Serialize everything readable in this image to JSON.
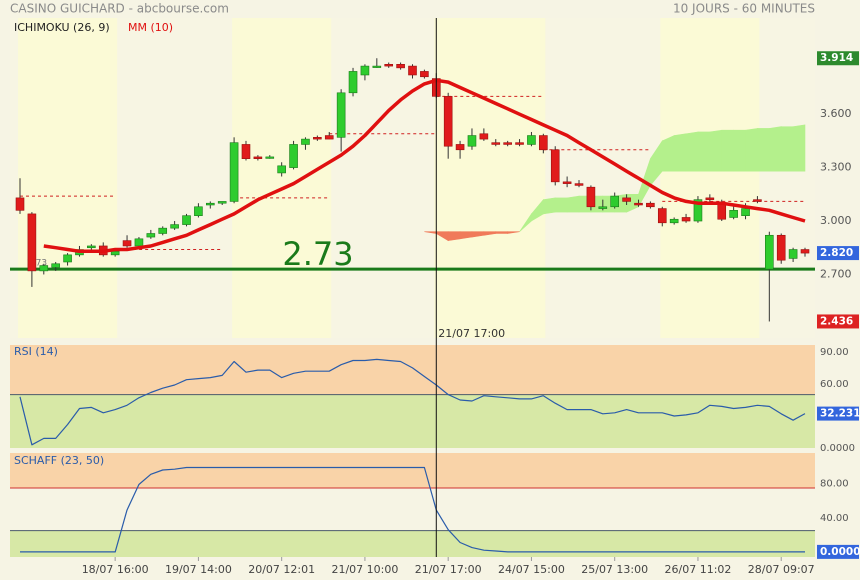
{
  "chart_data": [
    {
      "type": "candlestick",
      "title": "CASINO GUICHARD - abcbourse.com",
      "subtitle": "10 JOURS - 60 MINUTES",
      "open": [
        3.13,
        3.04,
        2.72,
        2.74,
        2.77,
        2.81,
        2.85,
        2.86,
        2.81,
        2.89,
        2.86,
        2.91,
        2.93,
        2.96,
        2.98,
        3.03,
        3.09,
        3.1,
        3.11,
        3.43,
        3.36,
        3.36,
        3.27,
        3.3,
        3.43,
        3.47,
        3.48,
        3.47,
        3.72,
        3.82,
        3.87,
        3.88,
        3.88,
        3.87,
        3.84,
        3.8,
        3.7,
        3.43,
        3.42,
        3.49,
        3.44,
        3.44,
        3.44,
        3.43,
        3.48,
        3.4,
        3.22,
        3.21,
        3.19,
        3.07,
        3.08,
        3.13,
        3.1,
        3.1,
        3.07,
        2.99,
        3.02,
        3.0,
        3.13,
        3.1,
        3.02,
        3.03,
        3.12,
        2.73,
        2.92,
        2.79,
        2.84
      ],
      "high": [
        3.24,
        3.05,
        2.76,
        2.77,
        2.82,
        2.86,
        2.87,
        2.88,
        2.84,
        2.92,
        2.91,
        2.95,
        2.97,
        3.0,
        3.04,
        3.1,
        3.11,
        3.11,
        3.47,
        3.45,
        3.37,
        3.37,
        3.33,
        3.45,
        3.47,
        3.48,
        3.5,
        3.74,
        3.86,
        3.88,
        3.914,
        3.89,
        3.89,
        3.88,
        3.85,
        3.83,
        3.72,
        3.45,
        3.52,
        3.52,
        3.46,
        3.45,
        3.46,
        3.5,
        3.49,
        3.42,
        3.25,
        3.23,
        3.2,
        3.12,
        3.16,
        3.15,
        3.12,
        3.11,
        3.08,
        3.02,
        3.04,
        3.14,
        3.15,
        3.12,
        3.09,
        3.1,
        3.14,
        2.94,
        2.93,
        2.85,
        2.85
      ],
      "low": [
        3.04,
        2.63,
        2.7,
        2.72,
        2.75,
        2.8,
        2.83,
        2.8,
        2.8,
        2.85,
        2.85,
        2.9,
        2.92,
        2.95,
        2.97,
        3.02,
        3.07,
        3.09,
        3.1,
        3.34,
        3.34,
        3.35,
        3.25,
        3.29,
        3.4,
        3.45,
        3.46,
        3.39,
        3.7,
        3.79,
        3.86,
        3.86,
        3.85,
        3.8,
        3.8,
        3.69,
        3.35,
        3.35,
        3.4,
        3.45,
        3.42,
        3.42,
        3.42,
        3.42,
        3.38,
        3.2,
        3.19,
        3.19,
        3.06,
        3.06,
        3.07,
        3.09,
        3.08,
        3.07,
        2.97,
        2.98,
        2.99,
        2.99,
        3.1,
        3.0,
        3.01,
        3.01,
        3.1,
        2.436,
        2.76,
        2.77,
        2.8
      ],
      "close": [
        3.06,
        2.72,
        2.75,
        2.76,
        2.81,
        2.84,
        2.86,
        2.81,
        2.83,
        2.86,
        2.9,
        2.93,
        2.96,
        2.98,
        3.03,
        3.08,
        3.1,
        3.11,
        3.44,
        3.35,
        3.35,
        3.36,
        3.31,
        3.43,
        3.46,
        3.46,
        3.46,
        3.72,
        3.84,
        3.87,
        3.87,
        3.87,
        3.86,
        3.82,
        3.81,
        3.7,
        3.42,
        3.4,
        3.48,
        3.46,
        3.43,
        3.43,
        3.43,
        3.48,
        3.4,
        3.22,
        3.21,
        3.2,
        3.08,
        3.08,
        3.14,
        3.11,
        3.09,
        3.08,
        2.99,
        3.01,
        3.0,
        3.12,
        3.12,
        3.01,
        3.06,
        3.07,
        3.11,
        2.92,
        2.78,
        2.84,
        2.82
      ],
      "up_color": "#2ecc2e",
      "down_color": "#e01b1b",
      "ylim": [
        2.36,
        4.14
      ],
      "yticks": [
        {
          "value": 2.7,
          "label": "2.700"
        },
        {
          "value": 3.0,
          "label": "3.000"
        },
        {
          "value": 3.3,
          "label": "3.300"
        },
        {
          "value": 3.6,
          "label": "3.600"
        }
      ],
      "xticks": [
        {
          "value": 8,
          "label": "18/07 16:00"
        },
        {
          "value": 15,
          "label": "19/07 14:00"
        },
        {
          "value": 22,
          "label": "20/07 12:01"
        },
        {
          "value": 29,
          "label": "21/07 10:00"
        },
        {
          "value": 36,
          "label": "21/07 17:00"
        },
        {
          "value": 43,
          "label": "24/07 15:00"
        },
        {
          "value": 50,
          "label": "25/07 13:00"
        },
        {
          "value": 57,
          "label": "26/07 11:02"
        },
        {
          "value": 64,
          "label": "28/07 09:07"
        }
      ],
      "series": [
        {
          "name": "MM (10)",
          "color": "#e01010",
          "values": [
            null,
            null,
            2.86,
            2.85,
            2.84,
            2.83,
            2.83,
            2.83,
            2.84,
            2.84,
            2.85,
            2.86,
            2.88,
            2.9,
            2.92,
            2.95,
            2.98,
            3.01,
            3.04,
            3.08,
            3.12,
            3.15,
            3.18,
            3.21,
            3.25,
            3.29,
            3.33,
            3.37,
            3.42,
            3.48,
            3.55,
            3.62,
            3.68,
            3.73,
            3.77,
            3.79,
            3.78,
            3.75,
            3.72,
            3.69,
            3.66,
            3.63,
            3.6,
            3.57,
            3.54,
            3.51,
            3.48,
            3.44,
            3.4,
            3.36,
            3.32,
            3.28,
            3.24,
            3.2,
            3.16,
            3.13,
            3.11,
            3.1,
            3.1,
            3.1,
            3.09,
            3.08,
            3.07,
            3.06,
            3.04,
            3.02,
            3.0
          ]
        }
      ],
      "ichimoku": {
        "name": "ICHIMOKU (26, 9)",
        "up_color": "#b4f08c",
        "down_color": "#f07a5a",
        "span_a": [
          null,
          null,
          null,
          null,
          null,
          null,
          null,
          null,
          null,
          null,
          null,
          null,
          null,
          null,
          null,
          null,
          null,
          null,
          null,
          null,
          null,
          null,
          null,
          null,
          null,
          null,
          null,
          null,
          null,
          null,
          null,
          null,
          null,
          null,
          2.94,
          2.93,
          2.89,
          2.9,
          2.91,
          2.92,
          2.93,
          2.93,
          2.94,
          3.04,
          3.12,
          3.13,
          3.13,
          3.14,
          3.14,
          3.14,
          3.14,
          3.15,
          3.15,
          3.35,
          3.45,
          3.48,
          3.49,
          3.5,
          3.5,
          3.51,
          3.51,
          3.51,
          3.52,
          3.52,
          3.53,
          3.53,
          3.54
        ],
        "span_b": [
          null,
          null,
          null,
          null,
          null,
          null,
          null,
          null,
          null,
          null,
          null,
          null,
          null,
          null,
          null,
          null,
          null,
          null,
          null,
          null,
          null,
          null,
          null,
          null,
          null,
          null,
          null,
          null,
          null,
          null,
          null,
          null,
          null,
          null,
          2.94,
          2.94,
          2.94,
          2.94,
          2.94,
          2.94,
          2.94,
          2.94,
          2.94,
          3.0,
          3.04,
          3.05,
          3.05,
          3.05,
          3.05,
          3.05,
          3.05,
          3.05,
          3.08,
          3.2,
          3.28,
          3.28,
          3.28,
          3.28,
          3.28,
          3.28,
          3.28,
          3.28,
          3.28,
          3.28,
          3.28,
          3.28,
          3.28
        ]
      },
      "levels": [
        {
          "value": 3.14,
          "from": 0,
          "to": 8
        },
        {
          "value": 2.84,
          "from": 8,
          "to": 17
        },
        {
          "value": 3.13,
          "from": 18,
          "to": 26
        },
        {
          "value": 3.49,
          "from": 26,
          "to": 35
        },
        {
          "value": 3.7,
          "from": 35,
          "to": 44
        },
        {
          "value": 3.4,
          "from": 44,
          "to": 53
        },
        {
          "value": 3.11,
          "from": 54,
          "to": 66
        }
      ],
      "level_color": "#d02020",
      "support": {
        "value": 2.73,
        "label": "2.73",
        "color": "#1a7a1a"
      },
      "price_labels": [
        {
          "value": 3.914,
          "label": "3.914",
          "color": "#2d8a2d"
        },
        {
          "value": 2.82,
          "label": "2.820",
          "color": "#3366dd"
        },
        {
          "value": 2.436,
          "label": "2.436",
          "color": "#dd2222"
        }
      ],
      "cursor": {
        "x": 35,
        "label": "21/07 17:00"
      }
    },
    {
      "type": "line",
      "title": "RSI (14)",
      "ylim": [
        0,
        96.5
      ],
      "yticks": [
        {
          "value": 0,
          "label": "0.0000"
        },
        {
          "value": 60,
          "label": "60.00"
        },
        {
          "value": 90,
          "label": "90.00"
        }
      ],
      "levels": [
        50
      ],
      "level_colors": [
        "#4a5a6a"
      ],
      "zones": {
        "above": "#f9d3a8",
        "below": "#d7e8a6"
      },
      "series": [
        {
          "color": "#2a5caa",
          "values": [
            48,
            3,
            9,
            9,
            22,
            37,
            38,
            33,
            36,
            40,
            47,
            52,
            56,
            59,
            64,
            65,
            66,
            68,
            81,
            71,
            73,
            73,
            66,
            70,
            72,
            72,
            72,
            78,
            82,
            82,
            83,
            82,
            81,
            75,
            67,
            59,
            50,
            45,
            44,
            49,
            48,
            47,
            46,
            46,
            49,
            42,
            36,
            36,
            36,
            32,
            33,
            36,
            33,
            33,
            33,
            30,
            31,
            33,
            40,
            39,
            37,
            38,
            40,
            39,
            32,
            26,
            32.231
          ]
        }
      ],
      "last_color": "#3366dd"
    },
    {
      "type": "line",
      "title": "SCHAFF (23, 50)",
      "ylim": [
        -6,
        116
      ],
      "yticks": [
        {
          "value": 40,
          "label": "40.00"
        },
        {
          "value": 80,
          "label": "80.00"
        }
      ],
      "levels": [
        75,
        25
      ],
      "level_colors": [
        "#d03030",
        "#4a5a6a"
      ],
      "zones": {
        "above": "#f9d3a8",
        "below": "#d7e8a6"
      },
      "series": [
        {
          "color": "#2a5caa",
          "values": [
            0,
            0,
            0,
            0,
            0,
            0,
            0,
            0,
            0,
            49,
            79,
            91,
            96,
            97,
            99,
            99,
            99,
            99,
            99,
            99,
            99,
            99,
            99,
            99,
            99,
            99,
            99,
            99,
            99,
            99,
            99,
            99,
            99,
            99,
            99,
            49,
            26,
            11,
            5,
            2,
            1,
            0,
            0,
            0,
            0,
            0,
            0,
            0,
            0,
            0,
            0,
            0,
            0,
            0,
            0,
            0,
            0,
            0,
            0,
            0,
            0,
            0,
            0,
            0,
            0,
            0,
            0
          ]
        }
      ],
      "last_label": {
        "value": 0,
        "label": "0.0000"
      },
      "last_color": "#3366dd"
    }
  ]
}
